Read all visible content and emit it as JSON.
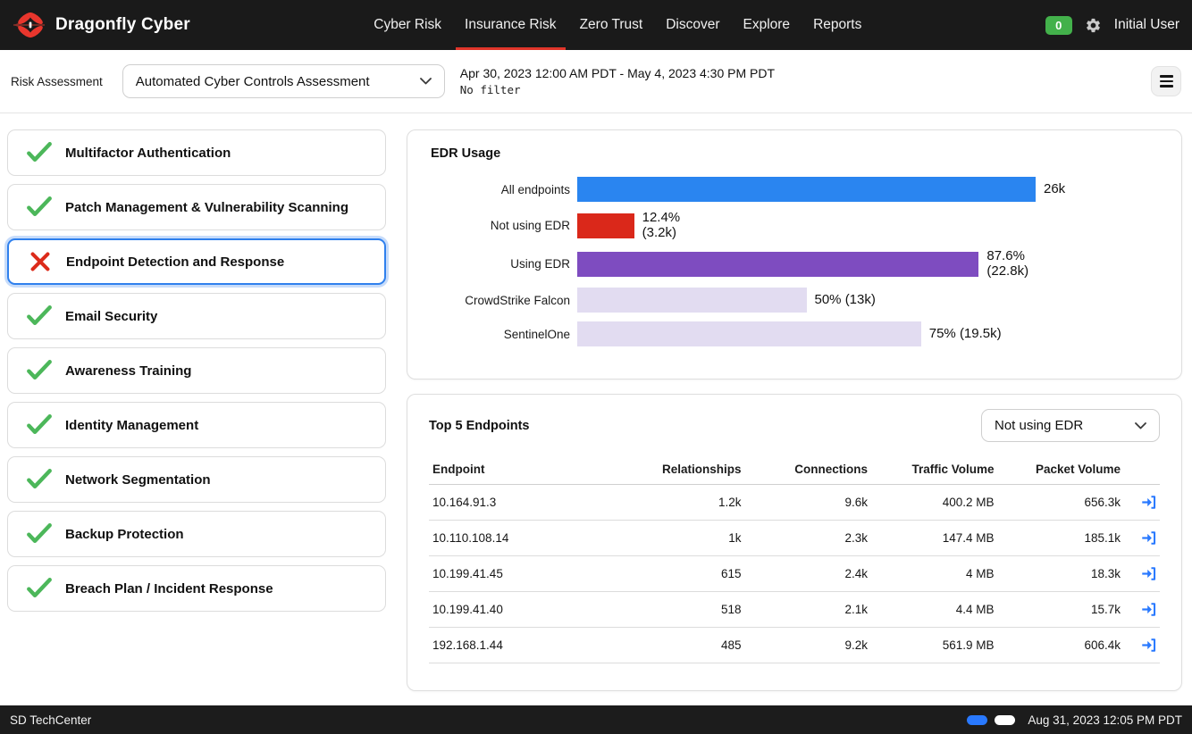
{
  "header": {
    "brand": "Dragonfly Cyber",
    "nav": [
      {
        "label": "Cyber Risk"
      },
      {
        "label": "Insurance Risk"
      },
      {
        "label": "Zero Trust"
      },
      {
        "label": "Discover"
      },
      {
        "label": "Explore"
      },
      {
        "label": "Reports"
      }
    ],
    "badge_count": "0",
    "user": "Initial User"
  },
  "toolbar": {
    "label": "Risk Assessment",
    "assessment_selected": "Automated Cyber Controls Assessment",
    "date_range": "Apr 30, 2023 12:00 AM PDT - May 4, 2023 4:30 PM PDT",
    "filter_text": "No filter"
  },
  "controls": {
    "items": [
      {
        "label": "Multifactor Authentication",
        "status": "pass"
      },
      {
        "label": "Patch Management & Vulnerability Scanning",
        "status": "pass"
      },
      {
        "label": "Endpoint Detection and Response",
        "status": "fail"
      },
      {
        "label": "Email Security",
        "status": "pass"
      },
      {
        "label": "Awareness Training",
        "status": "pass"
      },
      {
        "label": "Identity Management",
        "status": "pass"
      },
      {
        "label": "Network Segmentation",
        "status": "pass"
      },
      {
        "label": "Backup Protection",
        "status": "pass"
      },
      {
        "label": "Breach Plan / Incident Response",
        "status": "pass"
      }
    ]
  },
  "chart_data": {
    "type": "bar",
    "title": "EDR Usage",
    "orientation": "horizontal",
    "categories": [
      "All endpoints",
      "Not using EDR",
      "Using EDR",
      "CrowdStrike Falcon",
      "SentinelOne"
    ],
    "values": [
      26000,
      3200,
      22800,
      13000,
      19500
    ],
    "percent_of_total": [
      100,
      12.4,
      87.6,
      50,
      75
    ],
    "value_labels": [
      "26k",
      "12.4%\n(3.2k)",
      "87.6% (22.8k)",
      "50% (13k)",
      "75% (19.5k)"
    ],
    "colors": [
      "#2a85f0",
      "#da281a",
      "#7e4cc0",
      "#e2dcf1",
      "#e2dcf1"
    ],
    "xlim": [
      0,
      26000
    ],
    "grid": false,
    "legend": false
  },
  "endpoints": {
    "title": "Top 5 Endpoints",
    "filter_selected": "Not using EDR",
    "columns": [
      "Endpoint",
      "Relationships",
      "Connections",
      "Traffic Volume",
      "Packet Volume"
    ],
    "rows": [
      {
        "endpoint": "10.164.91.3",
        "relationships": "1.2k",
        "connections": "9.6k",
        "traffic": "400.2 MB",
        "packets": "656.3k"
      },
      {
        "endpoint": "10.110.108.14",
        "relationships": "1k",
        "connections": "2.3k",
        "traffic": "147.4 MB",
        "packets": "185.1k"
      },
      {
        "endpoint": "10.199.41.45",
        "relationships": "615",
        "connections": "2.4k",
        "traffic": "4 MB",
        "packets": "18.3k"
      },
      {
        "endpoint": "10.199.41.40",
        "relationships": "518",
        "connections": "2.1k",
        "traffic": "4.4 MB",
        "packets": "15.7k"
      },
      {
        "endpoint": "192.168.1.44",
        "relationships": "485",
        "connections": "9.2k",
        "traffic": "561.9 MB",
        "packets": "606.4k"
      }
    ]
  },
  "footer": {
    "site": "SD TechCenter",
    "timestamp": "Aug 31, 2023 12:05 PM PDT"
  }
}
